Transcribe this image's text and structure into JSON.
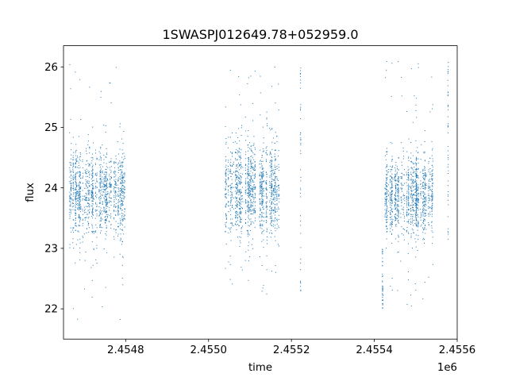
{
  "chart_data": {
    "type": "scatter",
    "title": "1SWASPJ012649.78+052959.0",
    "xlabel": "time",
    "ylabel": "flux",
    "x_offset_label": "1e6",
    "xlim": [
      2454650,
      2455600
    ],
    "ylim": [
      21.5,
      26.35
    ],
    "x_ticks": [
      2454800,
      2455000,
      2455200,
      2455400,
      2455600
    ],
    "x_tick_labels": [
      "2.4548",
      "2.4550",
      "2.4552",
      "2.4554",
      "2.4556"
    ],
    "y_ticks": [
      22,
      23,
      24,
      25,
      26
    ],
    "y_tick_labels": [
      "22",
      "23",
      "24",
      "25",
      "26"
    ],
    "grid": false,
    "point_color": "#1f77b4",
    "series": [
      {
        "observing_seasons": [
          {
            "x_start": 2454665,
            "x_end": 2454800,
            "y_center": 23.9,
            "y_spread": 0.35,
            "y_min": 21.75,
            "y_max": 26.1
          },
          {
            "x_start": 2455035,
            "x_end": 2455170,
            "y_center": 23.95,
            "y_spread": 0.38,
            "y_min": 22.2,
            "y_max": 26.1
          },
          {
            "x_start": 2455425,
            "x_end": 2455545,
            "y_center": 23.85,
            "y_spread": 0.33,
            "y_min": 22.0,
            "y_max": 26.1
          }
        ],
        "isolated_columns": [
          {
            "x": 2455222,
            "y_min": 22.2,
            "y_max": 26.0
          },
          {
            "x": 2455420,
            "y_min": 22.0,
            "y_max": 23.0
          },
          {
            "x": 2455578,
            "y_min": 23.1,
            "y_max": 26.1
          }
        ]
      }
    ]
  }
}
